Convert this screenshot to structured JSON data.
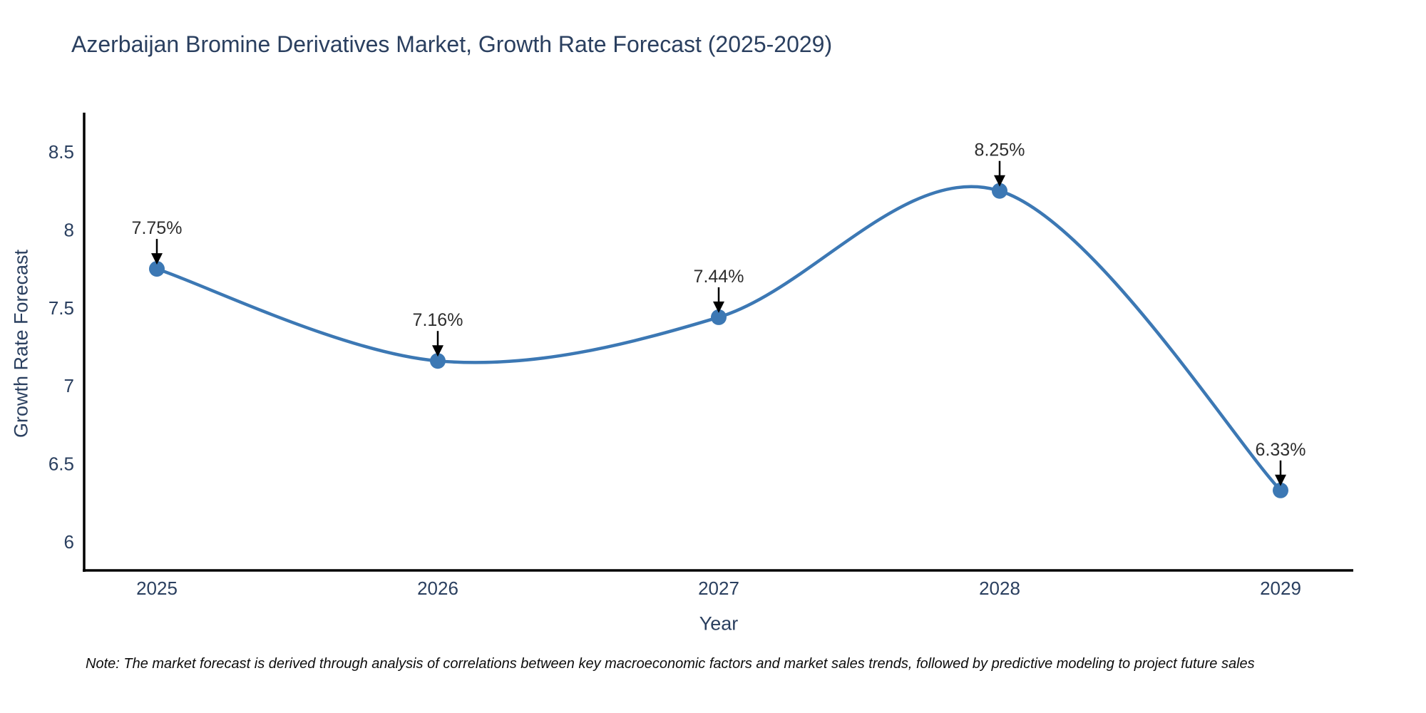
{
  "page": {
    "background": "#ffffff"
  },
  "chart_data": {
    "type": "line",
    "title": "Azerbaijan Bromine Derivatives Market, Growth Rate Forecast (2025-2029)",
    "xlabel": "Year",
    "ylabel": "Growth Rate Forecast",
    "categories": [
      "2025",
      "2026",
      "2027",
      "2028",
      "2029"
    ],
    "series": [
      {
        "name": "Growth Rate Forecast",
        "values": [
          7.75,
          7.16,
          7.44,
          8.25,
          6.33
        ],
        "point_labels": [
          "7.75%",
          "7.16%",
          "7.44%",
          "8.25%",
          "6.33%"
        ]
      }
    ],
    "ytick_values": [
      8.5,
      8,
      7.5,
      7,
      6.5,
      6
    ],
    "ytick_labels": [
      "8.5",
      "8",
      "7.5",
      "7",
      "6.5",
      "6"
    ],
    "ylim": [
      5.8,
      8.75
    ],
    "grid": false,
    "legend_position": "none",
    "line_shape": "spline",
    "annotation_style": "value-label-with-down-arrow",
    "colors": {
      "line": "#3c78b4",
      "marker": "#3c78b4",
      "axis": "#000000",
      "text": "#2a3f5f",
      "annotation_text": "#2e2e2e",
      "arrow": "#000000"
    }
  },
  "footnote": {
    "text": "Note: The market forecast is derived through analysis of correlations between key macroeconomic factors and market sales trends, followed by predictive modeling to project future sales"
  }
}
